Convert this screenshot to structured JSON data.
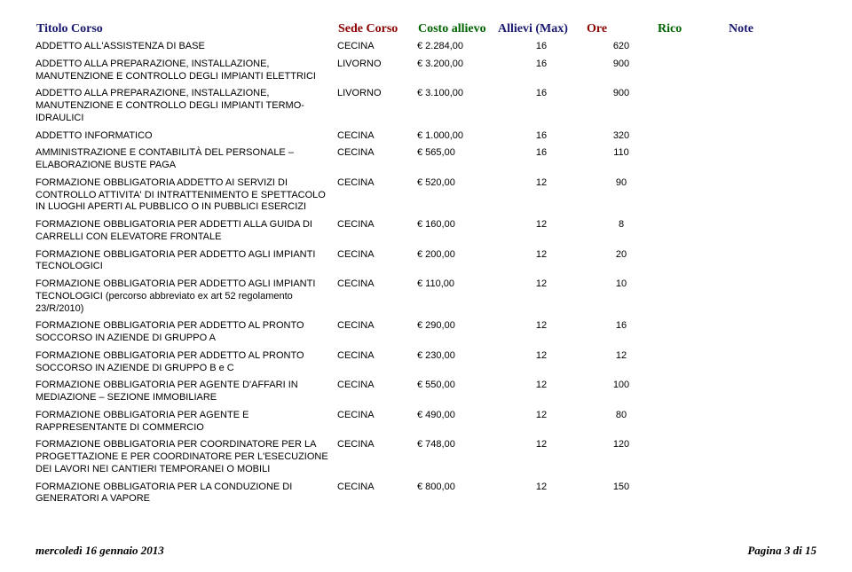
{
  "headers": {
    "title": "Titolo Corso",
    "sede": "Sede Corso",
    "costo": "Costo allievo",
    "max": "Allievi (Max)",
    "ore": "Ore",
    "rico": "Rico",
    "note": "Note"
  },
  "rows": [
    {
      "title": "ADDETTO ALL'ASSISTENZA DI BASE",
      "sede": "CECINA",
      "costo": "€ 2.284,00",
      "max": "16",
      "ore": "620"
    },
    {
      "title": "ADDETTO ALLA PREPARAZIONE, INSTALLAZIONE, MANUTENZIONE E CONTROLLO DEGLI IMPIANTI ELETTRICI",
      "sede": "LIVORNO",
      "costo": "€ 3.200,00",
      "max": "16",
      "ore": "900"
    },
    {
      "title": "ADDETTO ALLA PREPARAZIONE, INSTALLAZIONE, MANUTENZIONE E CONTROLLO DEGLI IMPIANTI TERMO-IDRAULICI",
      "sede": "LIVORNO",
      "costo": "€ 3.100,00",
      "max": "16",
      "ore": "900"
    },
    {
      "title": "ADDETTO INFORMATICO",
      "sede": "CECINA",
      "costo": "€ 1.000,00",
      "max": "16",
      "ore": "320"
    },
    {
      "title": "AMMINISTRAZIONE E CONTABILITÀ DEL PERSONALE – ELABORAZIONE BUSTE PAGA",
      "sede": "CECINA",
      "costo": "€ 565,00",
      "max": "16",
      "ore": "110"
    },
    {
      "title": "FORMAZIONE OBBLIGATORIA ADDETTO AI SERVIZI DI CONTROLLO ATTIVITA' DI INTRATTENIMENTO E SPETTACOLO IN LUOGHI APERTI AL PUBBLICO O IN PUBBLICI ESERCIZI",
      "sede": "CECINA",
      "costo": "€ 520,00",
      "max": "12",
      "ore": "90"
    },
    {
      "title": "FORMAZIONE OBBLIGATORIA PER ADDETTI ALLA GUIDA DI CARRELLI CON ELEVATORE FRONTALE",
      "sede": "CECINA",
      "costo": "€ 160,00",
      "max": "12",
      "ore": "8"
    },
    {
      "title": "FORMAZIONE OBBLIGATORIA PER ADDETTO AGLI IMPIANTI TECNOLOGICI",
      "sede": "CECINA",
      "costo": "€ 200,00",
      "max": "12",
      "ore": "20"
    },
    {
      "title": "FORMAZIONE OBBLIGATORIA PER ADDETTO AGLI IMPIANTI TECNOLOGICI (percorso abbreviato ex art 52 regolamento 23/R/2010)",
      "sede": "CECINA",
      "costo": "€ 110,00",
      "max": "12",
      "ore": "10"
    },
    {
      "title": "FORMAZIONE OBBLIGATORIA PER ADDETTO AL PRONTO SOCCORSO IN AZIENDE DI GRUPPO A",
      "sede": "CECINA",
      "costo": "€ 290,00",
      "max": "12",
      "ore": "16"
    },
    {
      "title": "FORMAZIONE OBBLIGATORIA PER ADDETTO AL PRONTO SOCCORSO IN AZIENDE DI GRUPPO B e C",
      "sede": "CECINA",
      "costo": "€ 230,00",
      "max": "12",
      "ore": "12"
    },
    {
      "title": "FORMAZIONE OBBLIGATORIA PER AGENTE D'AFFARI IN MEDIAZIONE – SEZIONE IMMOBILIARE",
      "sede": "CECINA",
      "costo": "€ 550,00",
      "max": "12",
      "ore": "100"
    },
    {
      "title": "FORMAZIONE OBBLIGATORIA PER AGENTE E RAPPRESENTANTE DI COMMERCIO",
      "sede": "CECINA",
      "costo": "€ 490,00",
      "max": "12",
      "ore": "80"
    },
    {
      "title": "FORMAZIONE OBBLIGATORIA PER COORDINATORE PER LA  PROGETTAZIONE E PER COORDINATORE PER L'ESECUZIONE DEI LAVORI NEI CANTIERI TEMPORANEI O MOBILI",
      "sede": "CECINA",
      "costo": "€ 748,00",
      "max": "12",
      "ore": "120"
    },
    {
      "title": "FORMAZIONE OBBLIGATORIA PER LA CONDUZIONE DI GENERATORI A VAPORE",
      "sede": "CECINA",
      "costo": "€ 800,00",
      "max": "12",
      "ore": "150"
    }
  ],
  "footer": {
    "date": "mercoledì 16 gennaio 2013",
    "page": "Pagina 3 di 15"
  }
}
